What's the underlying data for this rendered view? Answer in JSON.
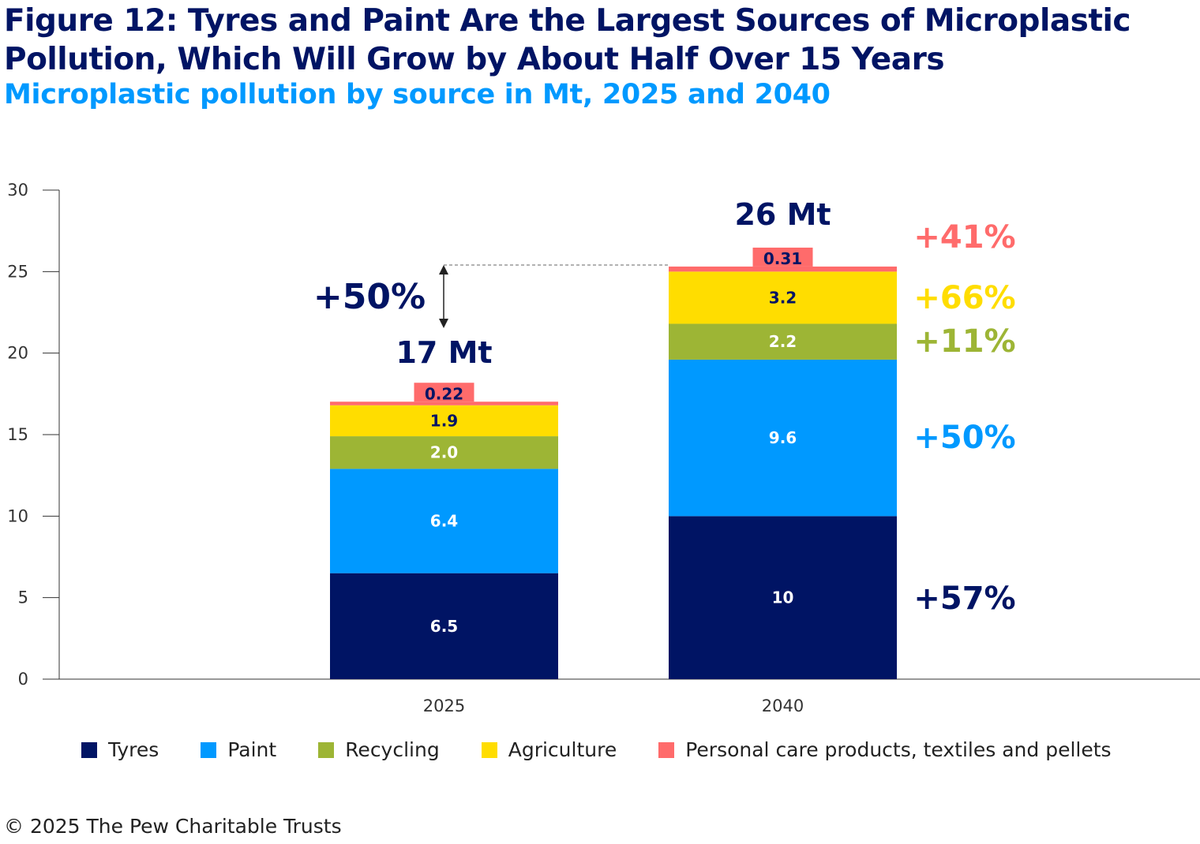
{
  "title": "Figure 12: Tyres and Paint Are the Largest Sources of Microplastic Pollution, Which Will Grow by About Half Over 15 Years",
  "subtitle": "Microplastic pollution by source in Mt, 2025 and 2040",
  "footer": "© 2025 The Pew Charitable Trusts",
  "chart_data": {
    "type": "bar",
    "stacked": true,
    "categories": [
      "2025",
      "2040"
    ],
    "ylim": [
      0,
      30
    ],
    "yticks": [
      0,
      5,
      10,
      15,
      20,
      25,
      30
    ],
    "grid": false,
    "legend_position": "bottom",
    "series": [
      {
        "name": "Tyres",
        "color": "#001464",
        "values": [
          6.5,
          10
        ],
        "labels": [
          "6.5",
          "10"
        ],
        "change": "+57%"
      },
      {
        "name": "Paint",
        "color": "#0099ff",
        "values": [
          6.4,
          9.6
        ],
        "labels": [
          "6.4",
          "9.6"
        ],
        "change": "+50%"
      },
      {
        "name": "Recycling",
        "color": "#9db535",
        "values": [
          2.0,
          2.2
        ],
        "labels": [
          "2.0",
          "2.2"
        ],
        "change": "+11%"
      },
      {
        "name": "Agriculture",
        "color": "#ffdd00",
        "values": [
          1.9,
          3.2
        ],
        "labels": [
          "1.9",
          "3.2"
        ],
        "change": "+66%"
      },
      {
        "name": "Personal care products, textiles and pellets",
        "color": "#ff6b6b",
        "values": [
          0.22,
          0.31
        ],
        "labels": [
          "0.22",
          "0.31"
        ],
        "change": "+41%"
      }
    ],
    "totals": [
      "17 Mt",
      "26 Mt"
    ],
    "total_change": "+50%"
  }
}
